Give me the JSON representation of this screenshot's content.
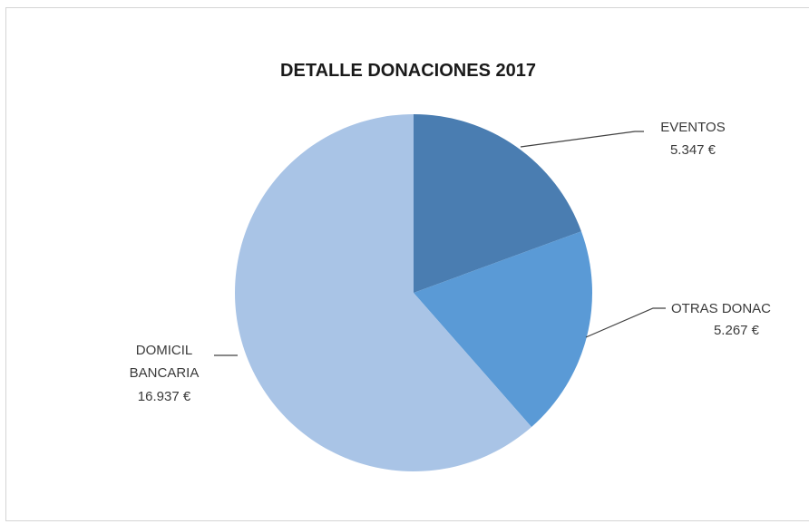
{
  "chart_data": {
    "type": "pie",
    "title": "DETALLE DONACIONES  2017",
    "slices": [
      {
        "name": "EVENTOS",
        "value_label": "5.347 €",
        "value": 5347,
        "color": "#4a7db1"
      },
      {
        "name": "OTRAS  DONAC",
        "value_label": "5.267 €",
        "value": 5267,
        "color": "#5a9ad6"
      },
      {
        "name_lines": [
          "DOMICIL",
          "BANCARIA"
        ],
        "value_label": "16.937 €",
        "value": 16937,
        "color": "#a9c4e6"
      }
    ]
  }
}
